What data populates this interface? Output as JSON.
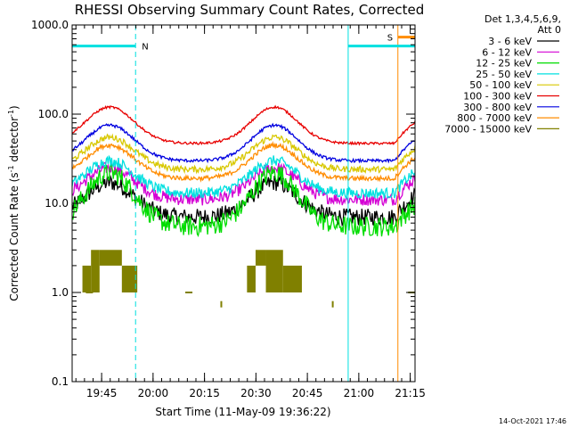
{
  "chart_data": {
    "type": "line",
    "title": "RHESSI Observing Summary Count Rates, Corrected",
    "xlabel": "Start Time (11-May-09 19:36:22)",
    "ylabel_main": "Corrected Count Rate (s",
    "ylabel_exp1": "-1",
    "ylabel_mid": " detector",
    "ylabel_exp2": "-1",
    "ylabel_end": ")",
    "yscale": "log",
    "ylim": [
      0.1,
      1000
    ],
    "xlim_minutes": [
      0,
      100
    ],
    "xticks": [
      {
        "label": "19:45",
        "t": 8.6
      },
      {
        "label": "20:00",
        "t": 23.6
      },
      {
        "label": "20:15",
        "t": 38.6
      },
      {
        "label": "20:30",
        "t": 53.6
      },
      {
        "label": "20:45",
        "t": 68.6
      },
      {
        "label": "21:00",
        "t": 83.6
      },
      {
        "label": "21:15",
        "t": 98.6
      }
    ],
    "yticks": [
      {
        "label": "0.1",
        "v": 0.1
      },
      {
        "label": "1.0",
        "v": 1
      },
      {
        "label": "10.0",
        "v": 10
      },
      {
        "label": "100.0",
        "v": 100
      },
      {
        "label": "1000.0",
        "v": 1000
      }
    ],
    "legend_header": [
      "Det 1,3,4,5,6,9,",
      "Att 0"
    ],
    "series": [
      {
        "name": "3 - 6 keV",
        "color": "#000000",
        "low": 7,
        "high": 17,
        "noise": 0.22
      },
      {
        "name": "6 - 12 keV",
        "color": "#d400d4",
        "low": 11,
        "high": 25,
        "noise": 0.16
      },
      {
        "name": "12 - 25 keV",
        "color": "#00dd00",
        "low": 5.5,
        "high": 22,
        "noise": 0.26
      },
      {
        "name": "25 - 50 keV",
        "color": "#00e0e0",
        "low": 13,
        "high": 30,
        "noise": 0.14
      },
      {
        "name": "50 - 100 keV",
        "color": "#d8c800",
        "low": 24,
        "high": 55,
        "noise": 0.08
      },
      {
        "name": "100 - 300 keV",
        "color": "#e80000",
        "low": 47,
        "high": 120,
        "noise": 0.03
      },
      {
        "name": "300 - 800 keV",
        "color": "#0000e0",
        "low": 30,
        "high": 75,
        "noise": 0.04
      },
      {
        "name": "800 - 7000 keV",
        "color": "#ff8c00",
        "low": 19,
        "high": 45,
        "noise": 0.06
      },
      {
        "name": "7000 - 15000 keV",
        "color": "#808000",
        "low": 1,
        "high": 2,
        "noise": 0
      }
    ],
    "bumps_minutes": [
      11,
      59
    ],
    "ramp_start_minutes": 94,
    "markers": [
      {
        "label": "N",
        "t": 18.5,
        "color": "#00e0e0"
      },
      {
        "label": "S",
        "t": 95,
        "color": "#ff8c00"
      }
    ],
    "night_bars": [
      {
        "t0": 0,
        "t1": 18.5,
        "color": "#00e0e0"
      },
      {
        "t0": 80.5,
        "t1": 100,
        "color": "#00e0e0"
      }
    ],
    "saa_bar": {
      "t0": 95,
      "t1": 100,
      "color": "#ff8c00"
    },
    "vlines": [
      {
        "t": 0,
        "color": "#00e0e0",
        "style": "solid"
      },
      {
        "t": 18.5,
        "color": "#00e0e0",
        "style": "dashed"
      },
      {
        "t": 80.5,
        "color": "#00e0e0",
        "style": "solid"
      },
      {
        "t": 95,
        "color": "#ff8c00",
        "style": "solid"
      },
      {
        "t": 100,
        "color": "#ff8c00",
        "style": "dashed"
      }
    ]
  },
  "footer_date": "14-Oct-2021 17:46"
}
